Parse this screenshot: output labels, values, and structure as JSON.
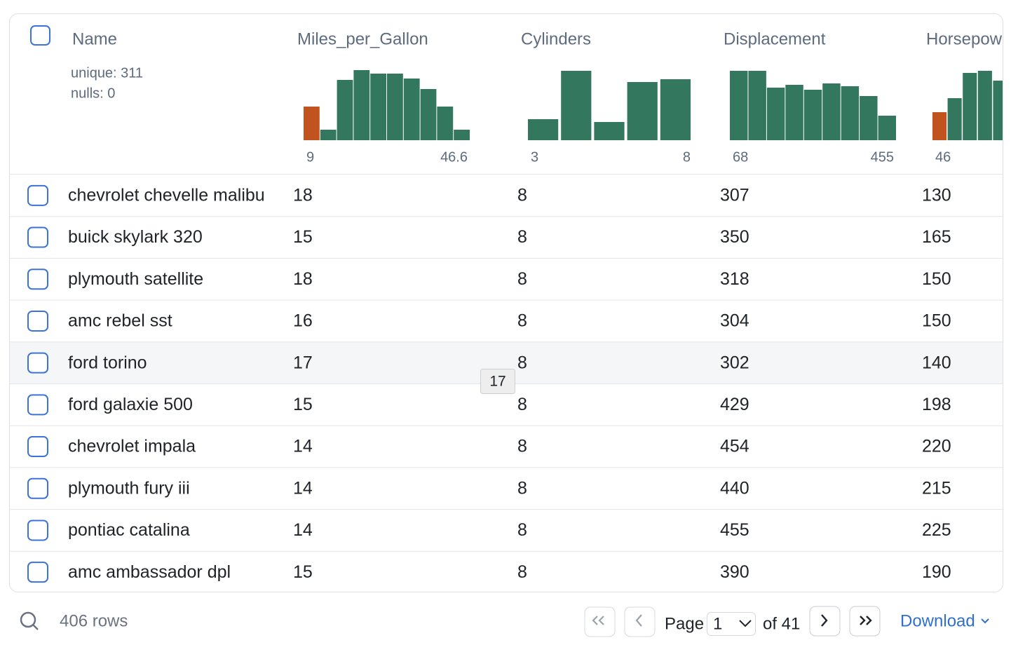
{
  "table": {
    "select_all": false,
    "columns": [
      {
        "name": "Name",
        "stats": [
          "unique: 311",
          "nulls: 0"
        ]
      },
      {
        "name": "Miles_per_Gallon",
        "histogram": {
          "ylim": [
            0,
            100
          ],
          "range": [
            9,
            46.6
          ],
          "bars": [
            {
              "value": 48,
              "color": "#c1531f"
            },
            {
              "value": 15,
              "color": "#33775f"
            },
            {
              "value": 86,
              "color": "#33775f"
            },
            {
              "value": 100,
              "color": "#33775f"
            },
            {
              "value": 95,
              "color": "#33775f"
            },
            {
              "value": 95,
              "color": "#33775f"
            },
            {
              "value": 88,
              "color": "#33775f"
            },
            {
              "value": 73,
              "color": "#33775f"
            },
            {
              "value": 48,
              "color": "#33775f"
            },
            {
              "value": 15,
              "color": "#33775f"
            }
          ]
        }
      },
      {
        "name": "Cylinders",
        "histogram": {
          "ylim": [
            0,
            100
          ],
          "range": [
            3,
            8
          ],
          "bars": [
            {
              "value": 30,
              "color": "#33775f"
            },
            {
              "value": 99,
              "color": "#33775f"
            },
            {
              "value": 26,
              "color": "#33775f"
            },
            {
              "value": 83,
              "color": "#33775f"
            },
            {
              "value": 87,
              "color": "#33775f"
            }
          ]
        }
      },
      {
        "name": "Displacement",
        "histogram": {
          "ylim": [
            0,
            100
          ],
          "range": [
            68,
            455
          ],
          "bars": [
            {
              "value": 99,
              "color": "#33775f"
            },
            {
              "value": 99,
              "color": "#33775f"
            },
            {
              "value": 75,
              "color": "#33775f"
            },
            {
              "value": 79,
              "color": "#33775f"
            },
            {
              "value": 72,
              "color": "#33775f"
            },
            {
              "value": 81,
              "color": "#33775f"
            },
            {
              "value": 77,
              "color": "#33775f"
            },
            {
              "value": 63,
              "color": "#33775f"
            },
            {
              "value": 35,
              "color": "#33775f"
            }
          ]
        }
      },
      {
        "name": "Horsepower",
        "histogram": {
          "ylim": [
            0,
            100
          ],
          "range": [
            46
          ],
          "bars": [
            {
              "value": 40,
              "color": "#c1531f"
            },
            {
              "value": 60,
              "color": "#33775f"
            },
            {
              "value": 96,
              "color": "#33775f"
            },
            {
              "value": 99,
              "color": "#33775f"
            },
            {
              "value": 85,
              "color": "#33775f"
            }
          ]
        }
      }
    ],
    "rows": [
      [
        "chevrolet chevelle malibu",
        18,
        8,
        307,
        130
      ],
      [
        "buick skylark 320",
        15,
        8,
        350,
        165
      ],
      [
        "plymouth satellite",
        18,
        8,
        318,
        150
      ],
      [
        "amc rebel sst",
        16,
        8,
        304,
        150
      ],
      [
        "ford torino",
        17,
        8,
        302,
        140
      ],
      [
        "ford galaxie 500",
        15,
        8,
        429,
        198
      ],
      [
        "chevrolet impala",
        14,
        8,
        454,
        220
      ],
      [
        "plymouth fury iii",
        14,
        8,
        440,
        215
      ],
      [
        "pontiac catalina",
        14,
        8,
        455,
        225
      ],
      [
        "amc ambassador dpl",
        15,
        8,
        390,
        190
      ]
    ]
  },
  "tooltip": "17",
  "footer": {
    "row_count": "406 rows",
    "page_label": "Page",
    "page": 1,
    "page_of": "of 41",
    "download": "Download"
  }
}
